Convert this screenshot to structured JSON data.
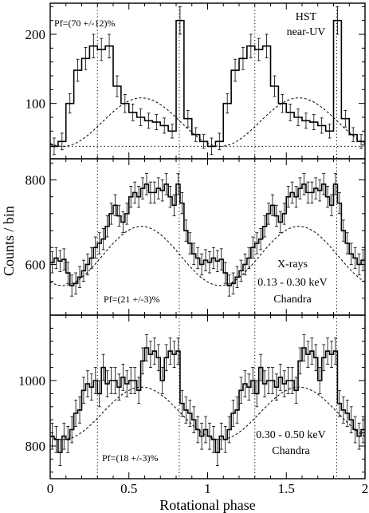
{
  "chart_data": {
    "type": "line",
    "xlabel": "Rotational phase",
    "ylabel": "Counts / bin",
    "xlim": [
      0,
      2
    ],
    "xticks": [
      0,
      0.5,
      1,
      1.5,
      2
    ],
    "xtick_labels": [
      "0",
      "0.5",
      "1",
      "1.5",
      "2"
    ],
    "vlines": [
      0.3,
      0.82,
      1.3,
      1.82
    ],
    "panels": [
      {
        "name": "top",
        "ylim": [
          20,
          245
        ],
        "yticks": [
          100,
          200
        ],
        "ytick_labels": [
          "100",
          "200"
        ],
        "pf_label": "Pf=(70 +/-12)%",
        "labels": [
          "HST",
          "near-UV"
        ],
        "step": {
          "x": [
            0,
            0.05,
            0.1,
            0.15,
            0.2,
            0.25,
            0.3,
            0.35,
            0.4,
            0.45,
            0.5,
            0.55,
            0.6,
            0.65,
            0.7,
            0.75,
            0.8,
            0.85,
            0.9,
            0.95
          ],
          "y": [
            38,
            45,
            100,
            148,
            165,
            183,
            178,
            183,
            125,
            100,
            87,
            80,
            75,
            73,
            68,
            60,
            220,
            78,
            55,
            45
          ],
          "err": [
            12,
            12,
            14,
            16,
            16,
            17,
            16,
            17,
            15,
            13,
            12,
            12,
            11,
            11,
            11,
            10,
            20,
            12,
            10,
            10
          ]
        },
        "model": {
          "amplitude": 35,
          "baseline": 38,
          "phase_max": 0.58
        },
        "baseline_dotted": 38
      },
      {
        "name": "middle",
        "ylim": [
          480,
          850
        ],
        "yticks": [
          600,
          800
        ],
        "ytick_labels": [
          "600",
          "800"
        ],
        "pf_label": "Pf=(21 +/-3)%",
        "labels": [
          "X-rays",
          "0.13 - 0.30  keV",
          "Chandra"
        ],
        "step": {
          "x": [
            0,
            0.025,
            0.05,
            0.075,
            0.1,
            0.125,
            0.15,
            0.175,
            0.2,
            0.225,
            0.25,
            0.275,
            0.3,
            0.325,
            0.35,
            0.375,
            0.4,
            0.425,
            0.45,
            0.475,
            0.5,
            0.525,
            0.55,
            0.575,
            0.6,
            0.625,
            0.65,
            0.675,
            0.7,
            0.725,
            0.75,
            0.775,
            0.8,
            0.825,
            0.85,
            0.875,
            0.9,
            0.925,
            0.95,
            0.975
          ],
          "y": [
            605,
            615,
            608,
            612,
            580,
            550,
            555,
            570,
            585,
            600,
            615,
            640,
            650,
            660,
            690,
            720,
            740,
            715,
            700,
            720,
            760,
            770,
            760,
            780,
            790,
            770,
            770,
            780,
            775,
            790,
            760,
            740,
            790,
            745,
            680,
            650,
            625,
            615,
            600,
            610
          ],
          "err": [
            25,
            25,
            25,
            25,
            25,
            25,
            25,
            25,
            25,
            25,
            25,
            25,
            25,
            25,
            25,
            25,
            25,
            25,
            25,
            25,
            25,
            25,
            25,
            25,
            25,
            25,
            25,
            25,
            25,
            25,
            25,
            25,
            25,
            25,
            25,
            25,
            25,
            25,
            25,
            25
          ]
        },
        "model": {
          "amplitude": 70,
          "baseline": 550,
          "phase_max": 0.58
        }
      },
      {
        "name": "bottom",
        "ylim": [
          700,
          1200
        ],
        "yticks": [
          800,
          1000
        ],
        "ytick_labels": [
          "800",
          "1000"
        ],
        "pf_label": "Pf=(18 +/-3)%",
        "labels": [
          "0.30 - 0.50  keV",
          "Chandra"
        ],
        "step": {
          "x": [
            0,
            0.025,
            0.05,
            0.075,
            0.1,
            0.125,
            0.15,
            0.175,
            0.2,
            0.225,
            0.25,
            0.275,
            0.3,
            0.325,
            0.35,
            0.375,
            0.4,
            0.425,
            0.45,
            0.475,
            0.5,
            0.525,
            0.55,
            0.575,
            0.6,
            0.625,
            0.65,
            0.675,
            0.7,
            0.725,
            0.75,
            0.775,
            0.8,
            0.825,
            0.85,
            0.875,
            0.9,
            0.925,
            0.95,
            0.975
          ],
          "y": [
            830,
            820,
            780,
            830,
            820,
            850,
            900,
            910,
            970,
            990,
            980,
            1000,
            960,
            1040,
            990,
            1000,
            1000,
            980,
            1010,
            990,
            1000,
            1000,
            970,
            1060,
            1100,
            1080,
            1090,
            1070,
            1000,
            1070,
            1090,
            1080,
            1090,
            930,
            910,
            900,
            880,
            850,
            830,
            850
          ],
          "err": [
            40,
            40,
            40,
            40,
            40,
            40,
            40,
            40,
            40,
            40,
            40,
            40,
            40,
            40,
            40,
            40,
            40,
            40,
            40,
            40,
            40,
            40,
            40,
            40,
            40,
            40,
            40,
            40,
            40,
            40,
            40,
            40,
            40,
            40,
            40,
            40,
            40,
            40,
            40,
            40
          ]
        },
        "model": {
          "amplitude": 80,
          "baseline": 820,
          "phase_max": 0.58
        }
      }
    ]
  }
}
